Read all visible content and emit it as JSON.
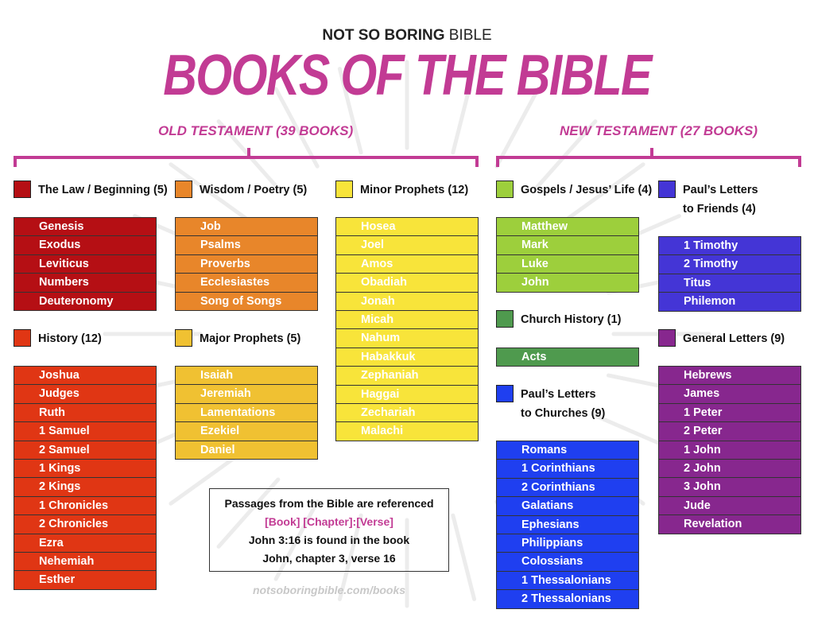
{
  "brand": {
    "part1": "NOT SO BORING",
    "part2": " BIBLE"
  },
  "title": "BOOKS OF THE BIBLE",
  "old_testament": {
    "label": "OLD TESTAMENT (39 BOOKS)"
  },
  "new_testament": {
    "label": "NEW TESTAMENT (27 BOOKS)"
  },
  "colors": {
    "accent": "#c23b94",
    "law": "#b50f14",
    "history": "#e03614",
    "wisdom": "#e8862a",
    "major": "#f0c132",
    "minor": "#f8e43a",
    "gospels": "#9dcf3c",
    "church": "#4f9a4e",
    "churches": "#1f3ff0",
    "friends": "#4435d6",
    "general": "#87278e"
  },
  "categories": {
    "law": {
      "label": "The Law / Beginning (5)",
      "books": [
        "Genesis",
        "Exodus",
        "Leviticus",
        "Numbers",
        "Deuteronomy"
      ]
    },
    "history": {
      "label": "History (12)",
      "books": [
        "Joshua",
        "Judges",
        "Ruth",
        "1 Samuel",
        "2 Samuel",
        "1 Kings",
        "2 Kings",
        "1 Chronicles",
        "2 Chronicles",
        "Ezra",
        "Nehemiah",
        "Esther"
      ]
    },
    "wisdom": {
      "label": "Wisdom / Poetry (5)",
      "books": [
        "Job",
        "Psalms",
        "Proverbs",
        "Ecclesiastes",
        "Song of Songs"
      ]
    },
    "major": {
      "label": "Major Prophets (5)",
      "books": [
        "Isaiah",
        "Jeremiah",
        "Lamentations",
        "Ezekiel",
        "Daniel"
      ]
    },
    "minor": {
      "label": "Minor Prophets (12)",
      "books": [
        "Hosea",
        "Joel",
        "Amos",
        "Obadiah",
        "Jonah",
        "Micah",
        "Nahum",
        "Habakkuk",
        "Zephaniah",
        "Haggai",
        "Zechariah",
        "Malachi"
      ]
    },
    "gospels": {
      "label": "Gospels / Jesus’ Life (4)",
      "books": [
        "Matthew",
        "Mark",
        "Luke",
        "John"
      ]
    },
    "church": {
      "label": "Church History (1)",
      "books": [
        "Acts"
      ]
    },
    "churches": {
      "label_line1": "Paul’s Letters",
      "label_line2": "to Churches (9)",
      "books": [
        "Romans",
        "1 Corinthians",
        "2 Corinthians",
        "Galatians",
        "Ephesians",
        "Philippians",
        "Colossians",
        "1 Thessalonians",
        "2 Thessalonians"
      ]
    },
    "friends": {
      "label_line1": "Paul’s Letters",
      "label_line2": "to Friends (4)",
      "books": [
        "1 Timothy",
        "2 Timothy",
        "Titus",
        "Philemon"
      ]
    },
    "general": {
      "label": "General Letters (9)",
      "books": [
        "Hebrews",
        "James",
        "1 Peter",
        "2 Peter",
        "1 John",
        "2 John",
        "3 John",
        "Jude",
        "Revelation"
      ]
    }
  },
  "note": {
    "line1": "Passages from the Bible are referenced",
    "line2": "[Book]  [Chapter]:[Verse]",
    "line3": "John 3:16 is found in the book",
    "line4": "John, chapter 3, verse 16"
  },
  "url": "notsoboringbible.com/books"
}
